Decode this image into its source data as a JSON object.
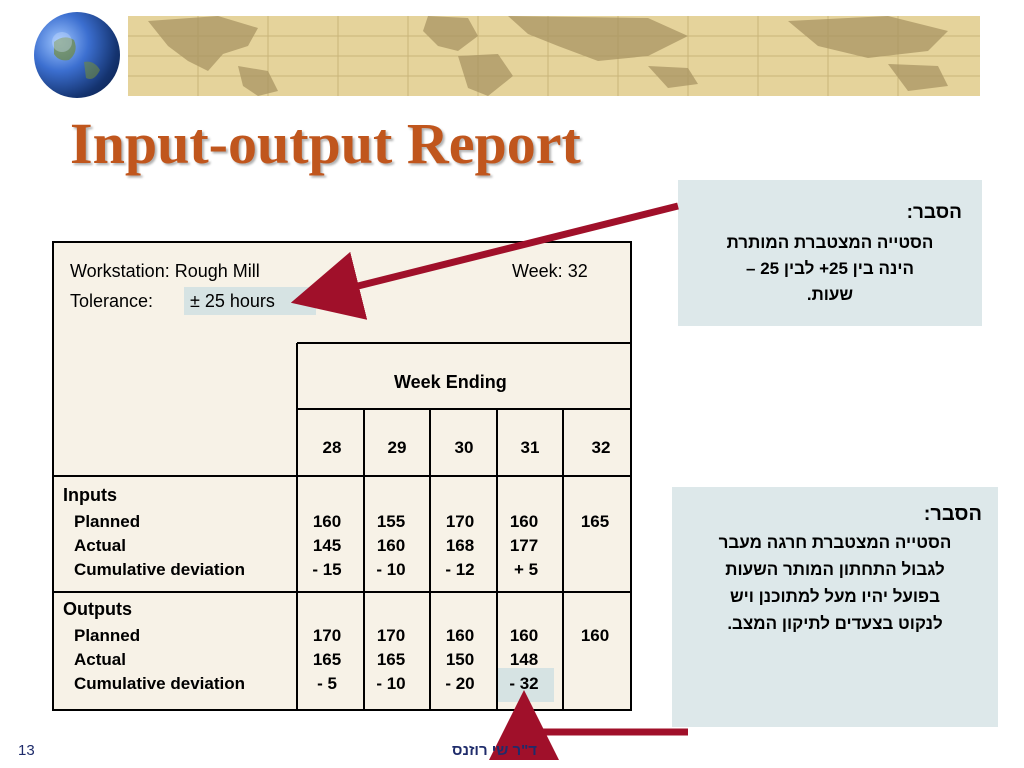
{
  "title": "Input-output Report",
  "report": {
    "workstation": "Workstation: Rough Mill",
    "week": "Week: 32",
    "tolerance_label": "Tolerance:",
    "tolerance_value": "± 25 hours",
    "week_ending": "Week Ending",
    "weeks": [
      "28",
      "29",
      "30",
      "31",
      "32"
    ],
    "inputs": {
      "heading": "Inputs",
      "planned_label": "Planned",
      "actual_label": "Actual",
      "cumdev_label": "Cumulative deviation",
      "planned": [
        "160",
        "155",
        "170",
        "160",
        "165"
      ],
      "actual": [
        "145",
        "160",
        "168",
        "177",
        ""
      ],
      "cumdev": [
        "- 15",
        "- 10",
        "- 12",
        "+ 5",
        ""
      ]
    },
    "outputs": {
      "heading": "Outputs",
      "planned_label": "Planned",
      "actual_label": "Actual",
      "cumdev_label": "Cumulative deviation",
      "planned": [
        "170",
        "170",
        "160",
        "160",
        "160"
      ],
      "actual": [
        "165",
        "165",
        "150",
        "148",
        ""
      ],
      "cumdev": [
        "- 5",
        "- 10",
        "- 20",
        "- 32",
        ""
      ]
    }
  },
  "note1": {
    "heading": "הסבר:",
    "lines": [
      "הסטייה המצטברת המותרת",
      "הינה בין 25+ לבין 25 –",
      "שעות."
    ]
  },
  "note2": {
    "heading": "הסבר:",
    "lines": [
      "הסטייה המצטברת חרגה  מעבר",
      "לגבול התחתון המותר השעות",
      "בפועל יהיו מעל למתוכנן ויש",
      "לנקוט בצעדים לתיקון המצב."
    ]
  },
  "footer": {
    "page_number": "13",
    "author": "ד\"ר שי רוזנס"
  },
  "colors": {
    "title": "#c0561d",
    "arrow": "#a0102a",
    "table_bg": "#f7f2e7",
    "note_bg": "#dde8ea",
    "banner": "#e5d39b"
  }
}
